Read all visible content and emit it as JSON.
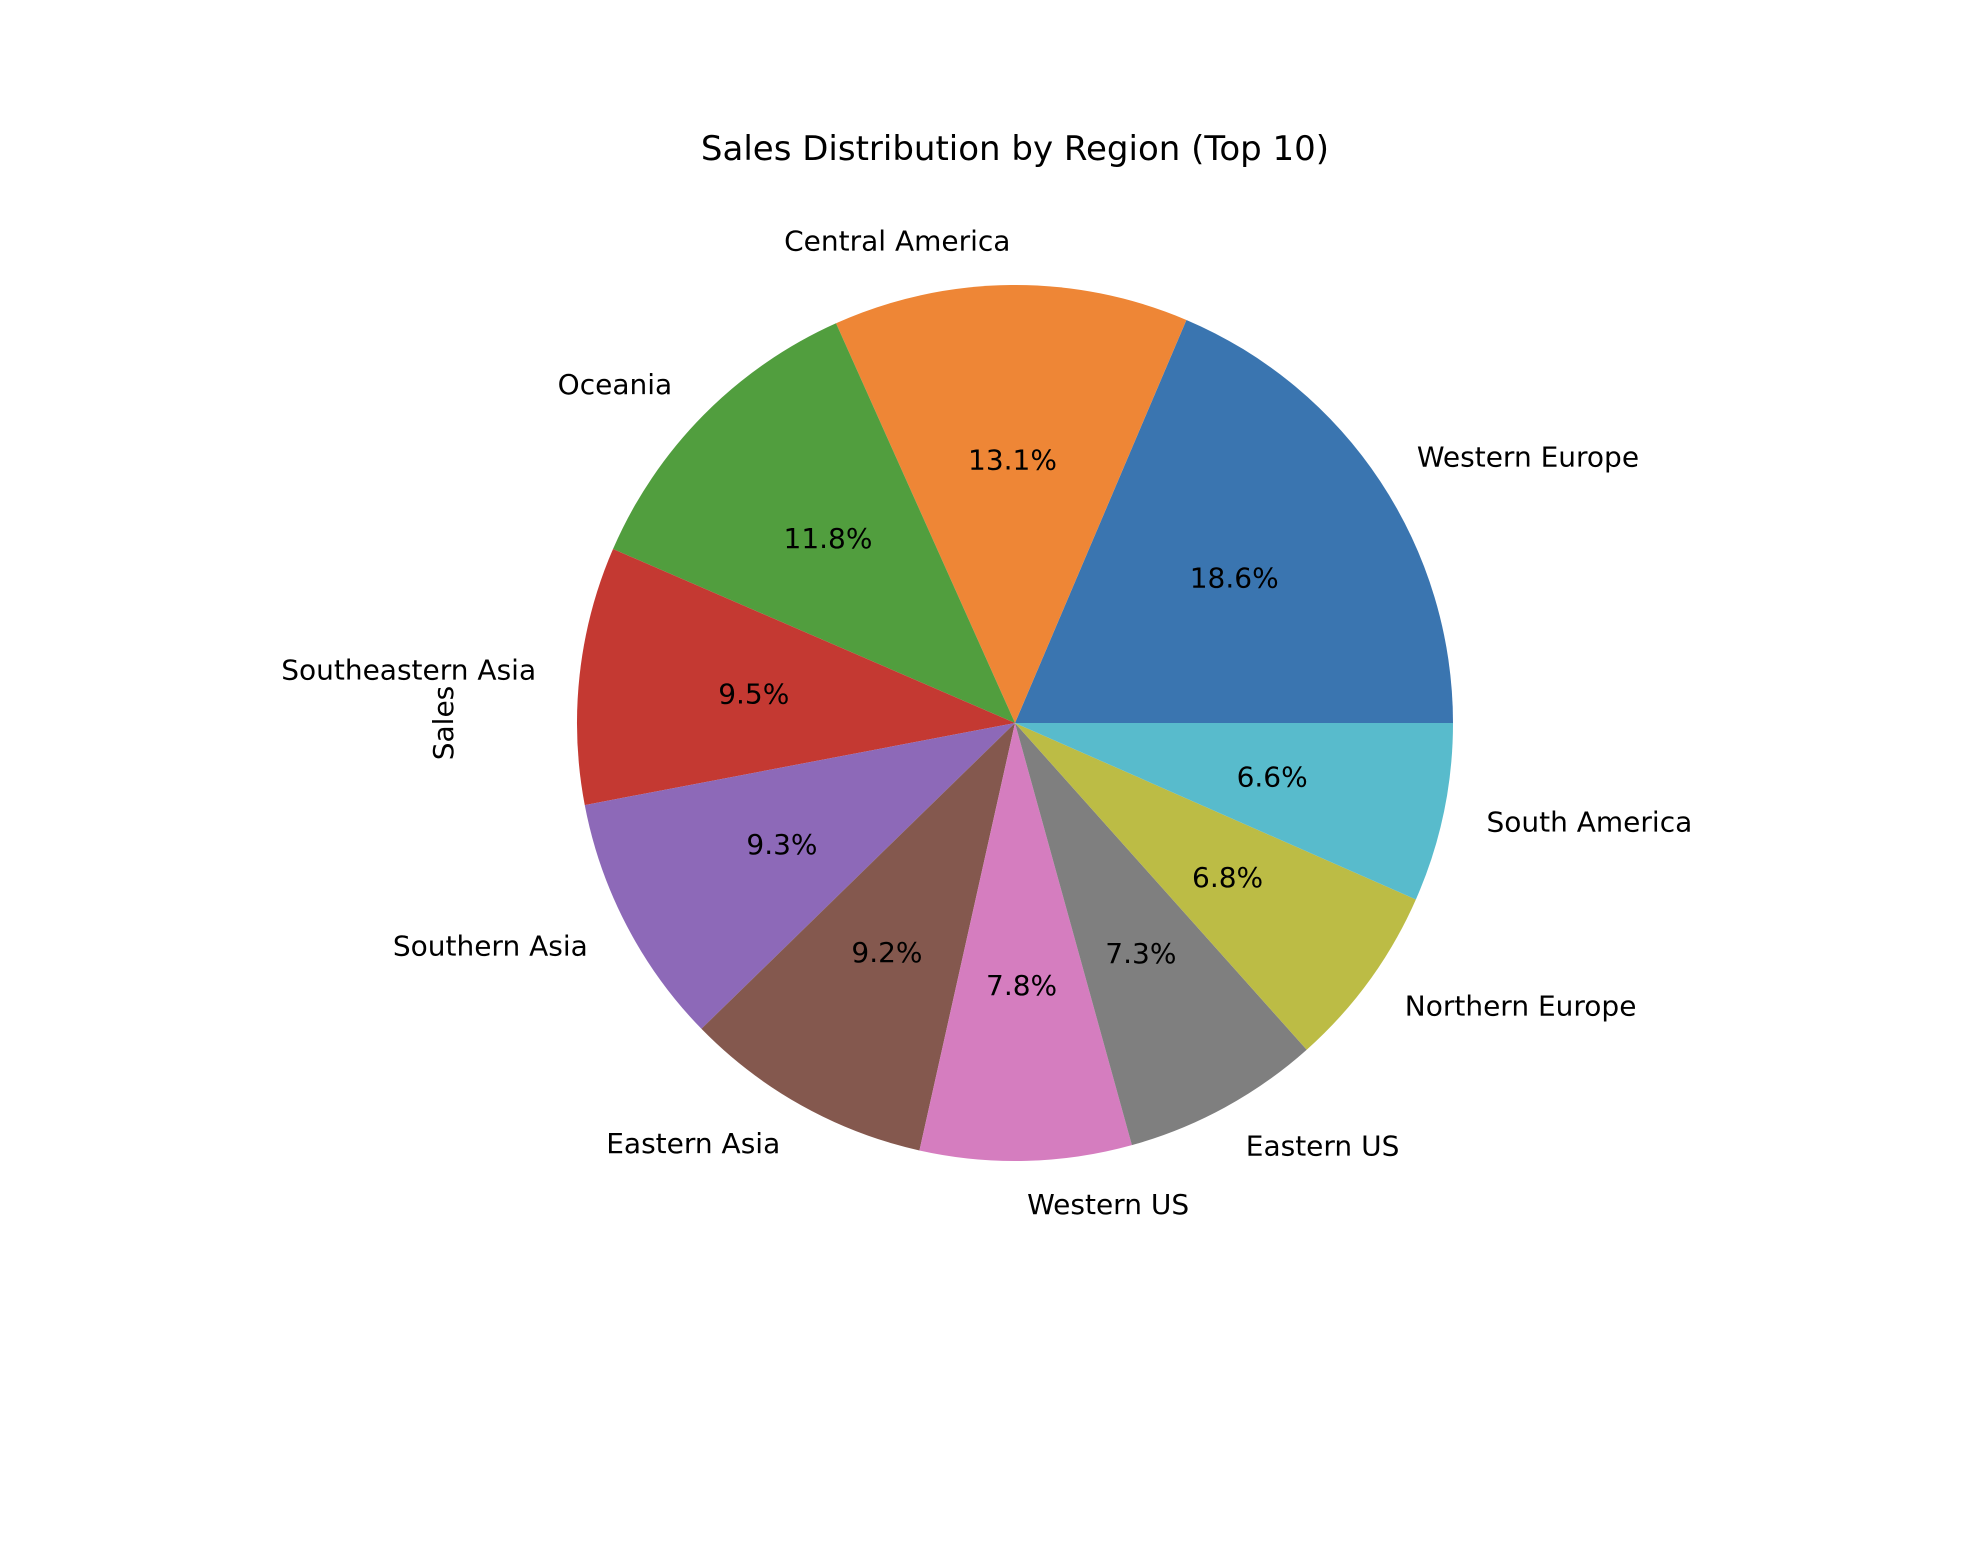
{
  "chart_data": {
    "type": "pie",
    "title": "Sales Distribution by Region (Top 10)",
    "ylabel": "Sales",
    "start_angle_deg": 0,
    "direction": "counterclockwise",
    "slices": [
      {
        "label": "Western Europe",
        "value": 18.6,
        "value_label": "18.6%",
        "color": "#3a75b0"
      },
      {
        "label": "Central America",
        "value": 13.1,
        "value_label": "13.1%",
        "color": "#ee8636"
      },
      {
        "label": "Oceania",
        "value": 11.8,
        "value_label": "11.8%",
        "color": "#519e3e"
      },
      {
        "label": "Southeastern Asia",
        "value": 9.5,
        "value_label": "9.5%",
        "color": "#c43932"
      },
      {
        "label": "Southern Asia",
        "value": 9.3,
        "value_label": "9.3%",
        "color": "#8d69b8"
      },
      {
        "label": "Eastern Asia",
        "value": 9.2,
        "value_label": "9.2%",
        "color": "#84584e"
      },
      {
        "label": "Western US",
        "value": 7.8,
        "value_label": "7.8%",
        "color": "#d57dbf"
      },
      {
        "label": "Eastern US",
        "value": 7.3,
        "value_label": "7.3%",
        "color": "#7f7f7f"
      },
      {
        "label": "Northern Europe",
        "value": 6.8,
        "value_label": "6.8%",
        "color": "#bcbc45"
      },
      {
        "label": "South America",
        "value": 6.6,
        "value_label": "6.6%",
        "color": "#58bbcc"
      }
    ]
  }
}
